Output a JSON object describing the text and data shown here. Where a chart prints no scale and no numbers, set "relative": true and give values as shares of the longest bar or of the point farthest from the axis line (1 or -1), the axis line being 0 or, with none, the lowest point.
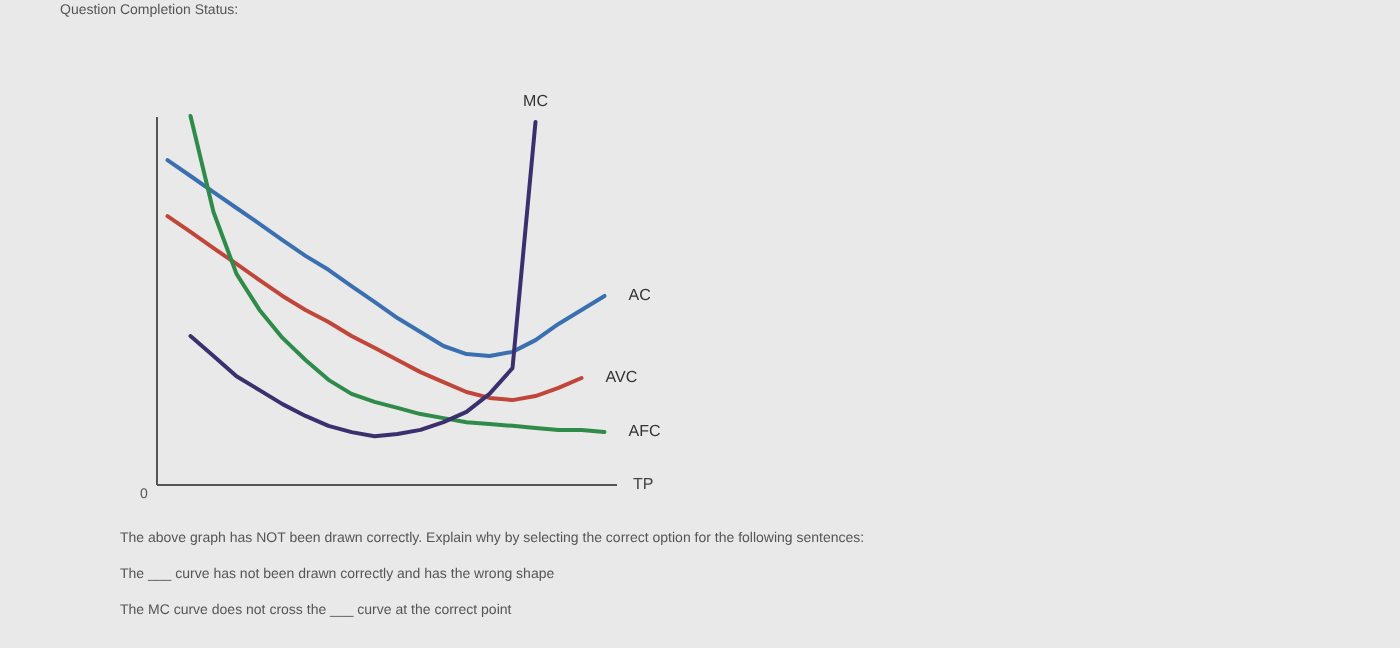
{
  "chart_data": {
    "type": "line",
    "relative": true,
    "xlabel": "TP",
    "legend": false,
    "categories": [
      null,
      null,
      null,
      null,
      null,
      null,
      null,
      null,
      null,
      null,
      null,
      null,
      null,
      null,
      null,
      null,
      null,
      null,
      null,
      null
    ],
    "series": [
      {
        "name": "AC",
        "color": "#3a6fb0",
        "values": [
          0.88,
          0.837,
          0.793,
          0.75,
          0.707,
          0.663,
          0.62,
          0.582,
          0.538,
          0.495,
          0.451,
          0.413,
          0.375,
          0.353,
          0.348,
          0.359,
          0.391,
          0.435,
          0.473,
          0.511
        ]
      },
      {
        "name": "AVC",
        "color": "#c0463a",
        "values": [
          0.728,
          0.685,
          0.641,
          0.598,
          0.554,
          0.511,
          0.473,
          0.44,
          0.402,
          0.37,
          0.337,
          0.304,
          0.277,
          0.25,
          0.234,
          0.228,
          0.239,
          0.261,
          0.288,
          null
        ]
      },
      {
        "name": "AFC",
        "color": "#2e8b4a",
        "values": [
          null,
          1,
          0.739,
          0.571,
          0.473,
          0.397,
          0.337,
          0.283,
          0.245,
          0.223,
          0.207,
          0.19,
          0.179,
          0.168,
          0.163,
          0.158,
          0.152,
          0.147,
          0.147,
          0.141
        ]
      },
      {
        "name": "MC",
        "color": "#3b2f6e",
        "values": [
          null,
          0.402,
          0.348,
          0.293,
          0.255,
          0.217,
          0.185,
          0.158,
          0.141,
          0.13,
          0.136,
          0.147,
          0.168,
          0.196,
          0.245,
          0.315,
          0.984,
          null,
          null,
          null
        ]
      }
    ],
    "annotations": [
      "0",
      "Question Completion Status:",
      "The above graph has NOT been drawn correctly. Explain why by selecting the correct option for the following sentences:",
      "The ___ curve has not been drawn correctly and has the wrong shape",
      "The MC curve does not cross the ___ curve at the correct point"
    ]
  }
}
